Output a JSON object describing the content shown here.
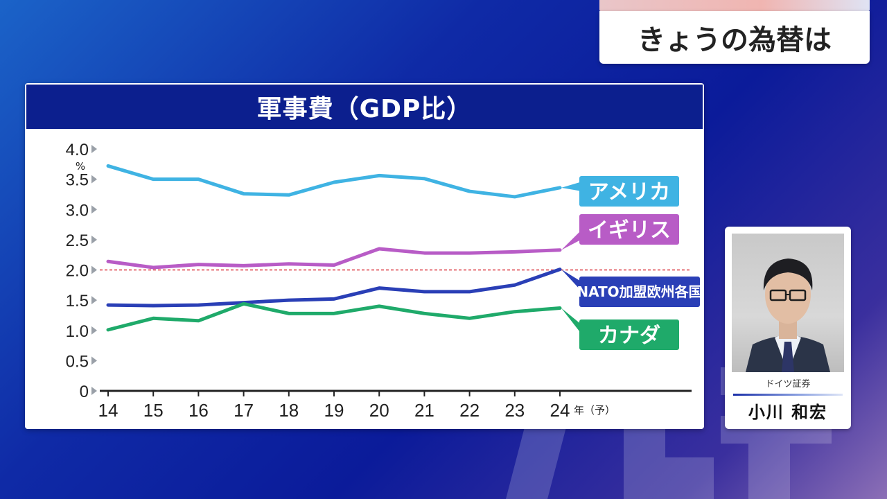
{
  "header": {
    "title": "きょうの為替は"
  },
  "commentator": {
    "organization": "ドイツ証券",
    "name": "小川 和宏"
  },
  "colors": {
    "panel_header": "#0c1f8e",
    "america": "#3fb3e3",
    "uk": "#b85cc6",
    "nato": "#2a3fb6",
    "canada": "#1faa6a",
    "reference": "#d9363e"
  },
  "chart_data": {
    "type": "line",
    "title": "軍事費（GDP比）",
    "ylabel": "%",
    "xlabel": "",
    "categories": [
      "14",
      "15",
      "16",
      "17",
      "18",
      "19",
      "20",
      "21",
      "22",
      "23",
      "24"
    ],
    "x_unit_label": "年（予）",
    "yticks": [
      "0",
      "0.5",
      "1.0",
      "1.5",
      "2.0",
      "2.5",
      "3.0",
      "3.5",
      "4.0"
    ],
    "ylim": [
      0,
      4.0
    ],
    "reference_line": {
      "y": 2.0,
      "style": "dashed"
    },
    "grid": false,
    "series": [
      {
        "name": "アメリカ",
        "color": "#3fb3e3",
        "values": [
          3.72,
          3.5,
          3.5,
          3.26,
          3.24,
          3.45,
          3.56,
          3.51,
          3.3,
          3.21,
          3.36
        ]
      },
      {
        "name": "イギリス",
        "color": "#b85cc6",
        "values": [
          2.14,
          2.04,
          2.09,
          2.07,
          2.1,
          2.08,
          2.35,
          2.28,
          2.28,
          2.3,
          2.33
        ]
      },
      {
        "name": "NATO加盟欧州各国",
        "color": "#2a3fb6",
        "values": [
          1.42,
          1.41,
          1.42,
          1.46,
          1.5,
          1.52,
          1.7,
          1.64,
          1.64,
          1.75,
          2.01
        ]
      },
      {
        "name": "カナダ",
        "color": "#1faa6a",
        "values": [
          1.01,
          1.2,
          1.16,
          1.44,
          1.28,
          1.28,
          1.4,
          1.28,
          1.2,
          1.31,
          1.37
        ]
      }
    ],
    "legend_placement": "right, labels at line ends"
  }
}
